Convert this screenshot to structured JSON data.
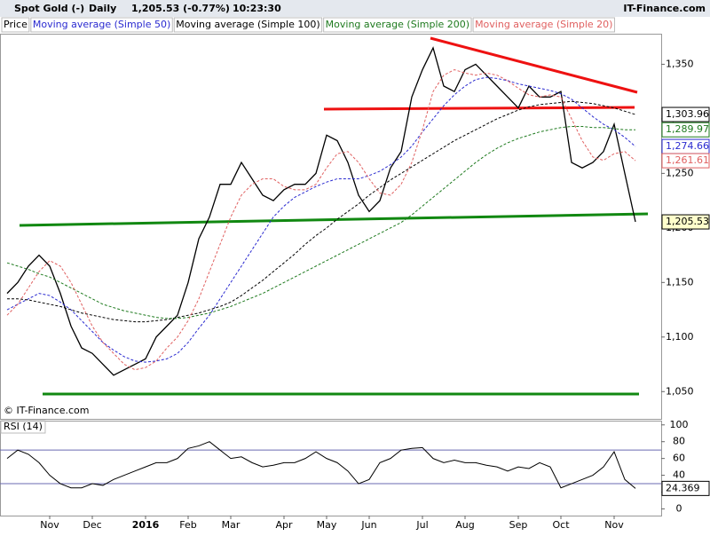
{
  "chart_data": {
    "type": "line",
    "title": "Spot Gold (-)",
    "interval": "Daily",
    "quote": "1,205.53 (-0.77%)",
    "time": "10:23:30",
    "source": "IT-Finance.com",
    "watermark": "© IT-Finance.com",
    "categories": [
      null,
      null,
      null,
      null,
      "Nov",
      null,
      null,
      null,
      "Dec",
      null,
      null,
      null,
      null,
      "2016",
      null,
      null,
      null,
      "Feb",
      null,
      null,
      null,
      "Mar",
      null,
      null,
      null,
      null,
      "Apr",
      null,
      null,
      null,
      "May",
      null,
      null,
      null,
      "Jun",
      null,
      null,
      null,
      null,
      "Jul",
      null,
      null,
      null,
      "Aug",
      null,
      null,
      null,
      null,
      "Sep",
      null,
      null,
      null,
      "Oct",
      null,
      null,
      null,
      null,
      "Nov",
      null,
      null
    ],
    "ylim": [
      1025,
      1378
    ],
    "yticks": [
      {
        "value": 1050,
        "label": "1,050"
      },
      {
        "value": 1100,
        "label": "1,100"
      },
      {
        "value": 1150,
        "label": "1,150"
      },
      {
        "value": 1200,
        "label": "1,200"
      },
      {
        "value": 1250,
        "label": "1,250"
      },
      {
        "value": 1300,
        "label": "1,300"
      },
      {
        "value": 1350,
        "label": "1,350"
      }
    ],
    "series": [
      {
        "name": "Price",
        "color": "#000000",
        "last_value_label": "1,205.53",
        "values": [
          1140,
          1150,
          1165,
          1175,
          1165,
          1140,
          1110,
          1090,
          1085,
          1075,
          1065,
          1070,
          1075,
          1080,
          1100,
          1110,
          1120,
          1150,
          1190,
          1210,
          1240,
          1240,
          1260,
          1245,
          1230,
          1225,
          1235,
          1240,
          1240,
          1250,
          1285,
          1280,
          1260,
          1230,
          1215,
          1225,
          1255,
          1270,
          1320,
          1345,
          1365,
          1330,
          1325,
          1345,
          1350,
          1340,
          1330,
          1320,
          1310,
          1330,
          1320,
          1320,
          1325,
          1260,
          1255,
          1260,
          1270,
          1295,
          1250,
          1205.53
        ]
      },
      {
        "name": "Moving average (Simple 50)",
        "color": "#2a2ad0",
        "last_value_label": "1,274.66",
        "values": [
          1125,
          1130,
          1135,
          1140,
          1138,
          1132,
          1125,
          1115,
          1105,
          1095,
          1088,
          1082,
          1078,
          1077,
          1078,
          1080,
          1085,
          1095,
          1108,
          1120,
          1135,
          1150,
          1165,
          1180,
          1195,
          1210,
          1220,
          1228,
          1233,
          1238,
          1242,
          1245,
          1245,
          1245,
          1248,
          1252,
          1258,
          1265,
          1275,
          1288,
          1300,
          1312,
          1322,
          1330,
          1336,
          1338,
          1337,
          1335,
          1332,
          1330,
          1328,
          1326,
          1323,
          1318,
          1310,
          1302,
          1295,
          1290,
          1283,
          1274.66
        ]
      },
      {
        "name": "Moving average (Simple 100)",
        "color": "#000000",
        "last_value_label": "1,303.96",
        "values": [
          1135,
          1135,
          1134,
          1132,
          1130,
          1128,
          1125,
          1122,
          1120,
          1118,
          1116,
          1115,
          1114,
          1114,
          1115,
          1116,
          1118,
          1120,
          1122,
          1125,
          1128,
          1132,
          1138,
          1145,
          1152,
          1160,
          1168,
          1176,
          1185,
          1193,
          1200,
          1208,
          1215,
          1222,
          1230,
          1237,
          1244,
          1250,
          1256,
          1262,
          1268,
          1274,
          1280,
          1285,
          1290,
          1295,
          1300,
          1304,
          1308,
          1311,
          1313,
          1314,
          1315,
          1316,
          1315,
          1314,
          1312,
          1310,
          1307,
          1303.96
        ]
      },
      {
        "name": "Moving average (Simple 200)",
        "color": "#1e7a1e",
        "last_value_label": "1,289.97",
        "values": [
          1168,
          1165,
          1162,
          1158,
          1155,
          1150,
          1145,
          1140,
          1135,
          1130,
          1127,
          1124,
          1122,
          1120,
          1118,
          1117,
          1117,
          1118,
          1120,
          1122,
          1125,
          1128,
          1132,
          1136,
          1140,
          1145,
          1150,
          1155,
          1160,
          1165,
          1170,
          1175,
          1180,
          1185,
          1190,
          1195,
          1200,
          1205,
          1212,
          1220,
          1228,
          1236,
          1244,
          1252,
          1260,
          1267,
          1273,
          1278,
          1282,
          1285,
          1288,
          1290,
          1292,
          1293,
          1293,
          1292,
          1292,
          1291,
          1290,
          1289.97
        ]
      },
      {
        "name": "Moving average (Simple 20)",
        "color": "#e06060",
        "last_value_label": "1,261.61",
        "values": [
          1120,
          1130,
          1145,
          1160,
          1170,
          1165,
          1150,
          1130,
          1110,
          1095,
          1085,
          1075,
          1070,
          1072,
          1078,
          1090,
          1100,
          1115,
          1135,
          1160,
          1185,
          1210,
          1230,
          1240,
          1245,
          1245,
          1238,
          1235,
          1235,
          1240,
          1255,
          1268,
          1270,
          1260,
          1245,
          1232,
          1230,
          1240,
          1260,
          1290,
          1325,
          1340,
          1345,
          1342,
          1340,
          1342,
          1340,
          1335,
          1328,
          1322,
          1320,
          1322,
          1320,
          1300,
          1280,
          1265,
          1262,
          1268,
          1270,
          1261.61
        ]
      }
    ],
    "rsi": {
      "name": "RSI (14)",
      "color": "#000000",
      "last_value_label": "24.369",
      "ylim": [
        -8,
        104
      ],
      "yticks": [
        0,
        20,
        40,
        60,
        80,
        100
      ],
      "levels": [
        30,
        70
      ],
      "values": [
        60,
        70,
        65,
        55,
        40,
        30,
        25,
        25,
        30,
        28,
        35,
        40,
        45,
        50,
        55,
        55,
        60,
        72,
        75,
        80,
        70,
        60,
        62,
        55,
        50,
        52,
        55,
        55,
        60,
        68,
        60,
        55,
        45,
        30,
        35,
        55,
        60,
        70,
        72,
        73,
        60,
        55,
        58,
        55,
        55,
        52,
        50,
        45,
        50,
        48,
        55,
        50,
        25,
        30,
        35,
        40,
        50,
        68,
        35,
        24.369
      ]
    }
  }
}
